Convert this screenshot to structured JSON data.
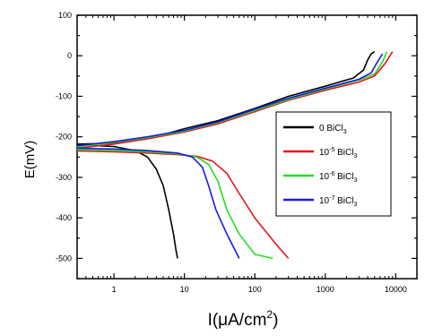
{
  "chart_data": {
    "type": "line",
    "xlabel": "I(μA/cm",
    "xlabel_sup": "2",
    "xlabel_close": ")",
    "ylabel": "E(mV)",
    "x_scale": "log",
    "xlim": [
      0.3,
      20000
    ],
    "ylim": [
      -550,
      100
    ],
    "x_ticks": [
      {
        "value": 1,
        "label": "1"
      },
      {
        "value": 10,
        "label": "10"
      },
      {
        "value": 100,
        "label": "100"
      },
      {
        "value": 1000,
        "label": "1000"
      },
      {
        "value": 10000,
        "label": "10000"
      }
    ],
    "y_ticks": [
      {
        "value": 100,
        "label": "100"
      },
      {
        "value": 0,
        "label": "0"
      },
      {
        "value": -100,
        "label": "-100"
      },
      {
        "value": -200,
        "label": "-200"
      },
      {
        "value": -300,
        "label": "-300"
      },
      {
        "value": -400,
        "label": "-400"
      },
      {
        "value": -500,
        "label": "-500"
      }
    ],
    "grid": false,
    "legend_position": "right",
    "series": [
      {
        "name": "0 BiCl",
        "name_sub": "3",
        "color": "#000000",
        "cathodic": [
          [
            0.3,
            -220
          ],
          [
            1,
            -224
          ],
          [
            2,
            -234
          ],
          [
            3,
            -250
          ],
          [
            4,
            -280
          ],
          [
            5,
            -320
          ],
          [
            6,
            -380
          ],
          [
            7,
            -440
          ],
          [
            7.6,
            -480
          ],
          [
            8,
            -500
          ]
        ],
        "anodic": [
          [
            0.3,
            -218
          ],
          [
            1,
            -216
          ],
          [
            2,
            -208
          ],
          [
            5,
            -195
          ],
          [
            10,
            -180
          ],
          [
            30,
            -160
          ],
          [
            100,
            -130
          ],
          [
            300,
            -100
          ],
          [
            1000,
            -75
          ],
          [
            2500,
            -55
          ],
          [
            3500,
            -35
          ],
          [
            4000,
            -10
          ],
          [
            4500,
            5
          ],
          [
            5000,
            10
          ]
        ]
      },
      {
        "name": "10",
        "name_exp": "-5",
        "name_rest": " BiCl",
        "name_sub": "3",
        "color": "#e8141a",
        "cathodic": [
          [
            0.3,
            -235
          ],
          [
            1,
            -237
          ],
          [
            3,
            -240
          ],
          [
            8,
            -244
          ],
          [
            15,
            -248
          ],
          [
            25,
            -260
          ],
          [
            40,
            -290
          ],
          [
            60,
            -340
          ],
          [
            100,
            -400
          ],
          [
            200,
            -465
          ],
          [
            300,
            -500
          ]
        ],
        "anodic": [
          [
            0.3,
            -228
          ],
          [
            1,
            -218
          ],
          [
            3,
            -205
          ],
          [
            10,
            -188
          ],
          [
            30,
            -168
          ],
          [
            100,
            -138
          ],
          [
            300,
            -110
          ],
          [
            1000,
            -85
          ],
          [
            3000,
            -65
          ],
          [
            5000,
            -50
          ],
          [
            7000,
            -20
          ],
          [
            9000,
            10
          ]
        ]
      },
      {
        "name": "10",
        "name_exp": "-6",
        "name_rest": " BiCl",
        "name_sub": "3",
        "color": "#22dd22",
        "cathodic": [
          [
            0.3,
            -232
          ],
          [
            1,
            -234
          ],
          [
            3,
            -237
          ],
          [
            8,
            -242
          ],
          [
            15,
            -250
          ],
          [
            22,
            -268
          ],
          [
            30,
            -310
          ],
          [
            40,
            -380
          ],
          [
            60,
            -440
          ],
          [
            100,
            -490
          ],
          [
            180,
            -500
          ]
        ],
        "anodic": [
          [
            0.3,
            -225
          ],
          [
            1,
            -214
          ],
          [
            3,
            -202
          ],
          [
            10,
            -186
          ],
          [
            30,
            -165
          ],
          [
            100,
            -135
          ],
          [
            300,
            -108
          ],
          [
            1000,
            -82
          ],
          [
            3000,
            -60
          ],
          [
            5000,
            -45
          ],
          [
            6500,
            -15
          ],
          [
            7500,
            10
          ]
        ]
      },
      {
        "name": "10",
        "name_exp": "-7",
        "name_rest": " BiCl",
        "name_sub": "3",
        "color": "#1a1ae8",
        "cathodic": [
          [
            0.3,
            -228
          ],
          [
            1,
            -230
          ],
          [
            3,
            -234
          ],
          [
            8,
            -240
          ],
          [
            13,
            -250
          ],
          [
            18,
            -275
          ],
          [
            22,
            -320
          ],
          [
            28,
            -380
          ],
          [
            40,
            -440
          ],
          [
            60,
            -500
          ]
        ],
        "anodic": [
          [
            0.3,
            -222
          ],
          [
            1,
            -212
          ],
          [
            3,
            -200
          ],
          [
            10,
            -184
          ],
          [
            30,
            -163
          ],
          [
            100,
            -132
          ],
          [
            300,
            -105
          ],
          [
            1000,
            -80
          ],
          [
            3000,
            -58
          ],
          [
            4500,
            -42
          ],
          [
            5500,
            -15
          ],
          [
            6500,
            5
          ]
        ]
      }
    ]
  }
}
